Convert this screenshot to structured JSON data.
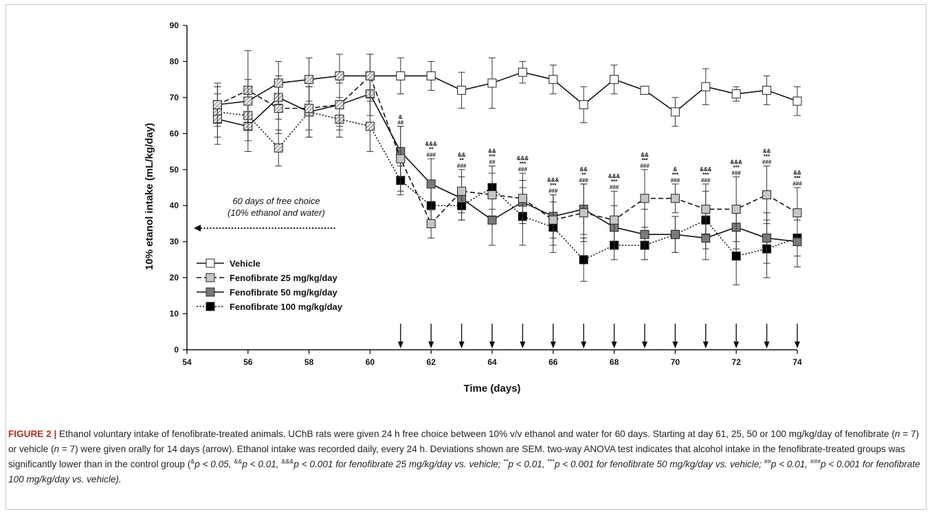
{
  "chart_data": {
    "type": "line",
    "xlabel": "Time (days)",
    "ylabel": "10% etanol intake (mL/kg/day)",
    "xlim": [
      54,
      74
    ],
    "ylim": [
      0,
      90
    ],
    "x_ticks": [
      54,
      56,
      58,
      60,
      62,
      64,
      66,
      68,
      70,
      72,
      74
    ],
    "y_ticks": [
      0,
      10,
      20,
      30,
      40,
      50,
      60,
      70,
      80,
      90
    ],
    "legend_position": "bottom-left",
    "grid": false,
    "x": [
      55,
      56,
      57,
      58,
      59,
      60,
      61,
      62,
      63,
      64,
      65,
      66,
      67,
      68,
      69,
      70,
      71,
      72,
      73,
      74
    ],
    "series": [
      {
        "name": "Vehicle",
        "style": "solid",
        "marker_fill": "#ffffff",
        "values": [
          68,
          69,
          74,
          75,
          76,
          76,
          76,
          76,
          72,
          74,
          77,
          75,
          68,
          75,
          72,
          66,
          73,
          71,
          72,
          69
        ],
        "errors": [
          5,
          6,
          6,
          6,
          6,
          6,
          5,
          4,
          5,
          7,
          3,
          4,
          5,
          4,
          0,
          4,
          5,
          2,
          4,
          4
        ]
      },
      {
        "name": "Fenofibrate 25 mg/kg/day",
        "style": "dashed",
        "marker_fill": "#c6c6c6",
        "values": [
          68,
          72,
          67,
          67,
          68,
          76,
          53,
          35,
          44,
          43,
          42,
          36,
          38,
          36,
          42,
          42,
          39,
          39,
          43,
          38
        ],
        "errors": [
          6,
          11,
          7,
          6,
          7,
          6,
          9,
          4,
          6,
          6,
          7,
          7,
          8,
          8,
          8,
          4,
          7,
          9,
          8,
          7
        ]
      },
      {
        "name": "Fenofibrate 50 mg/kg/day",
        "style": "solid",
        "marker_fill": "#7a7a7a",
        "values": [
          64,
          62,
          70,
          66,
          68,
          71,
          55,
          46,
          42,
          36,
          41,
          37,
          39,
          34,
          32,
          32,
          31,
          34,
          31,
          30
        ],
        "errors": [
          7,
          7,
          6,
          7,
          6,
          6,
          7,
          7,
          6,
          7,
          6,
          6,
          7,
          6,
          7,
          5,
          6,
          6,
          7,
          7
        ]
      },
      {
        "name": "Fenofibrate 100 mg/kg/day",
        "style": "dotted",
        "marker_fill": "#000000",
        "values": [
          66,
          65,
          56,
          66,
          64,
          62,
          47,
          40,
          40,
          45,
          37,
          34,
          25,
          29,
          29,
          32,
          36,
          26,
          28,
          31
        ],
        "errors": [
          7,
          7,
          5,
          7,
          5,
          7,
          4,
          5,
          4,
          6,
          8,
          7,
          6,
          4,
          4,
          5,
          8,
          8,
          8,
          5
        ]
      }
    ],
    "hatched_points_x": [
      55,
      56,
      57,
      58,
      59,
      60
    ],
    "significance": [
      {
        "x": 61,
        "lines": [
          "&",
          "##"
        ]
      },
      {
        "x": 62,
        "lines": [
          "&&&",
          "**",
          "###"
        ]
      },
      {
        "x": 63,
        "lines": [
          "&&",
          "**",
          "###"
        ]
      },
      {
        "x": 64,
        "lines": [
          "&&",
          "***",
          "##"
        ]
      },
      {
        "x": 65,
        "lines": [
          "&&&",
          "***",
          "###"
        ]
      },
      {
        "x": 66,
        "lines": [
          "&&&",
          "***",
          "###"
        ]
      },
      {
        "x": 67,
        "lines": [
          "&&",
          "**",
          "###"
        ]
      },
      {
        "x": 68,
        "lines": [
          "&&&",
          "***",
          "###"
        ]
      },
      {
        "x": 69,
        "lines": [
          "&&",
          "***",
          "###"
        ]
      },
      {
        "x": 70,
        "lines": [
          "&",
          "***",
          "###"
        ]
      },
      {
        "x": 71,
        "lines": [
          "&&&",
          "***",
          "###"
        ]
      },
      {
        "x": 72,
        "lines": [
          "&&&",
          "***",
          "###"
        ]
      },
      {
        "x": 73,
        "lines": [
          "&&",
          "***",
          "###"
        ]
      },
      {
        "x": 74,
        "lines": [
          "&&",
          "***",
          "###"
        ]
      }
    ],
    "dosing_arrows_x": [
      61,
      62,
      63,
      64,
      65,
      66,
      67,
      68,
      69,
      70,
      71,
      72,
      73,
      74
    ],
    "annotation": {
      "line1": "60 days of free choice",
      "line2": "(10% ethanol and water)"
    }
  },
  "caption": {
    "label": "FIGURE 2 |",
    "text1": " Ethanol voluntary intake of fenofibrate-treated animals. UChB rats were given 24 h free choice between 10% v/v ethanol and water for 60 days. Starting at day 61, 25, 50 or 100 mg/kg/day of fenofibrate (",
    "n1": "n",
    "text2": " = 7) or vehicle (",
    "n2": "n",
    "text3": " = 7) were given orally for 14 days (arrow). Ethanol intake was recorded daily, every 24 h. Deviations shown are SEM. two-way ANOVA test indicates that alcohol intake in the fenofibrate-treated groups was significantly lower than in the control group (",
    "s1": "&",
    "p1": "p < 0.05, ",
    "s2": "&&",
    "p2": "p < 0.01, ",
    "s3": "&&&",
    "p3": "p < 0.001 for fenofibrate 25 mg/kg/day vs. vehicle; ",
    "s4": "**",
    "p4": "p < 0.01, ",
    "s5": "***",
    "p5": "p < 0.001 for fenofibrate 50 mg/kg/day vs. vehicle; ",
    "s6": "##",
    "p6": "p < 0.01, ",
    "s7": "###",
    "p7": "p < 0.001 for fenofibrate 100 mg/kg/day vs. vehicle)."
  }
}
